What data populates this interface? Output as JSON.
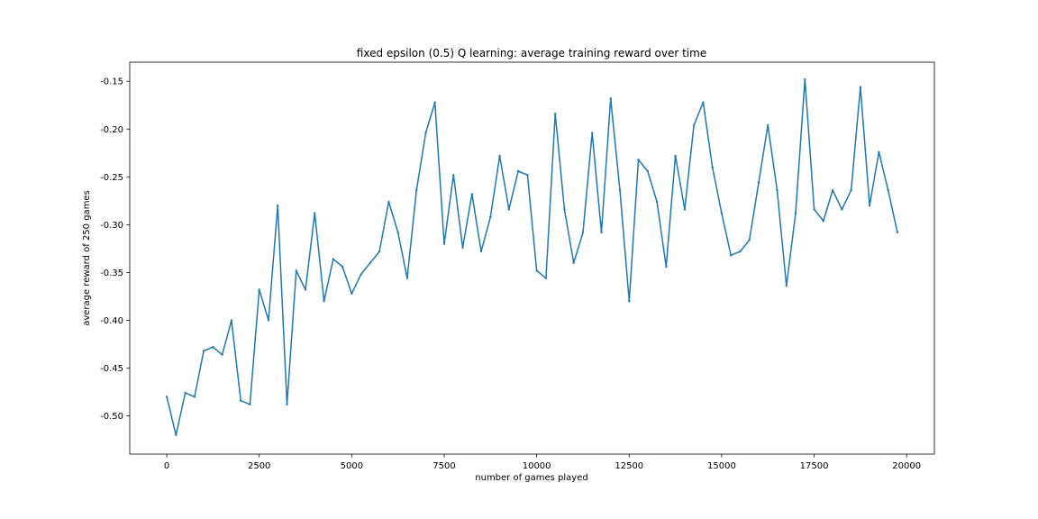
{
  "chart_data": {
    "type": "line",
    "title": "fixed epsilon (0.5) Q learning: average training reward over time",
    "xlabel": "number of games played",
    "ylabel": "average reward of 250 games",
    "xlim": [
      -1000,
      20750
    ],
    "ylim": [
      -0.54,
      -0.13
    ],
    "xticks": [
      0,
      2500,
      5000,
      7500,
      10000,
      12500,
      15000,
      17500,
      20000
    ],
    "xtick_labels": [
      "0",
      "2500",
      "5000",
      "7500",
      "10000",
      "12500",
      "15000",
      "17500",
      "20000"
    ],
    "yticks": [
      -0.5,
      -0.45,
      -0.4,
      -0.35,
      -0.3,
      -0.25,
      -0.2,
      -0.15
    ],
    "ytick_labels": [
      "-0.50",
      "-0.45",
      "-0.40",
      "-0.35",
      "-0.30",
      "-0.25",
      "-0.20",
      "-0.15"
    ],
    "grid": false,
    "colors": {
      "line": "#1f77b4",
      "axes": "#000000"
    },
    "series": [
      {
        "x": [
          0,
          250,
          500,
          750,
          1000,
          1250,
          1500,
          1750,
          2000,
          2250,
          2500,
          2750,
          3000,
          3250,
          3500,
          3750,
          4000,
          4250,
          4500,
          4750,
          5000,
          5250,
          5500,
          5750,
          6000,
          6250,
          6500,
          6750,
          7000,
          7250,
          7500,
          7750,
          8000,
          8250,
          8500,
          8750,
          9000,
          9250,
          9500,
          9750,
          10000,
          10250,
          10500,
          10750,
          11000,
          11250,
          11500,
          11750,
          12000,
          12250,
          12500,
          12750,
          13000,
          13250,
          13500,
          13750,
          14000,
          14250,
          14500,
          14750,
          15000,
          15250,
          15500,
          15750,
          16000,
          16250,
          16500,
          16750,
          17000,
          17250,
          17500,
          17750,
          18000,
          18250,
          18500,
          18750,
          19000,
          19250,
          19500,
          19750
        ],
        "y": [
          -0.48,
          -0.52,
          -0.476,
          -0.48,
          -0.432,
          -0.428,
          -0.436,
          -0.4,
          -0.484,
          -0.488,
          -0.368,
          -0.4,
          -0.28,
          -0.488,
          -0.348,
          -0.368,
          -0.288,
          -0.38,
          -0.336,
          -0.344,
          -0.372,
          -0.352,
          -0.34,
          -0.328,
          -0.276,
          -0.308,
          -0.356,
          -0.264,
          -0.204,
          -0.172,
          -0.32,
          -0.248,
          -0.324,
          -0.268,
          -0.328,
          -0.292,
          -0.228,
          -0.284,
          -0.244,
          -0.248,
          -0.348,
          -0.356,
          -0.184,
          -0.284,
          -0.34,
          -0.308,
          -0.204,
          -0.308,
          -0.168,
          -0.264,
          -0.38,
          -0.232,
          -0.244,
          -0.276,
          -0.344,
          -0.228,
          -0.284,
          -0.196,
          -0.172,
          -0.24,
          -0.288,
          -0.332,
          -0.328,
          -0.316,
          -0.256,
          -0.196,
          -0.264,
          -0.364,
          -0.288,
          -0.148,
          -0.284,
          -0.296,
          -0.264,
          -0.284,
          -0.264,
          -0.156,
          -0.28,
          -0.224,
          -0.264,
          -0.308
        ]
      }
    ]
  }
}
